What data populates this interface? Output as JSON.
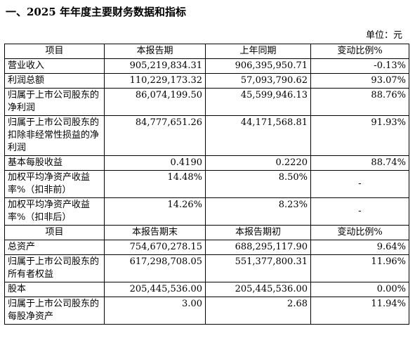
{
  "title": "一、2025 年年度主要财务数据和指标",
  "unit": "单位：元",
  "table1": {
    "header": [
      "项目",
      "本报告期",
      "上年同期",
      "变动比例%"
    ],
    "rows": [
      {
        "label": "营业收入",
        "a": "905,219,834.31",
        "b": "906,395,950.71",
        "c": "-0.13%"
      },
      {
        "label": "利润总额",
        "a": "110,229,173.32",
        "b": "57,093,790.62",
        "c": "93.07%"
      },
      {
        "label": "归属于上市公司股东的净利润",
        "a": "86,074,199.50",
        "b": "45,599,946.13",
        "c": "88.76%"
      },
      {
        "label": "归属于上市公司股东的扣除非经常性损益的净利润",
        "a": "84,777,651.26",
        "b": "44,171,568.81",
        "c": "91.93%"
      },
      {
        "label": "基本每股收益",
        "a": "0.4190",
        "b": "0.2220",
        "c": "88.74%"
      },
      {
        "label": "加权平均净资产收益率%（扣非前）",
        "a": "14.48%",
        "b": "8.50%",
        "c": "-"
      },
      {
        "label": "加权平均净资产收益率%（扣非后）",
        "a": "14.26%",
        "b": "8.23%",
        "c": "-"
      }
    ]
  },
  "table2": {
    "header": [
      "项目",
      "本报告期末",
      "本报告期初",
      "变动比例%"
    ],
    "rows": [
      {
        "label": "总资产",
        "a": "754,670,278.15",
        "b": "688,295,117.90",
        "c": "9.64%"
      },
      {
        "label": "归属于上市公司股东的所有者权益",
        "a": "617,298,708.05",
        "b": "551,377,800.31",
        "c": "11.96%"
      },
      {
        "label": "股本",
        "a": "205,445,536.00",
        "b": "205,445,536.00",
        "c": "0.00%"
      },
      {
        "label": "归属于上市公司股东的每股净资产",
        "a": "3.00",
        "b": "2.68",
        "c": "11.94%"
      }
    ]
  }
}
